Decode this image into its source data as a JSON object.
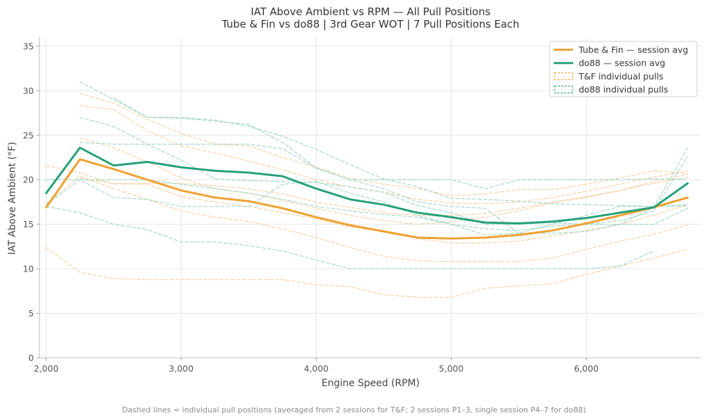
{
  "chart_data": {
    "type": "line",
    "title": "IAT Above Ambient vs RPM — All Pull Positions",
    "subtitle": "Tube & Fin vs do88 | 3rd Gear WOT | 7 Pull Positions Each",
    "xlabel": "Engine Speed (RPM)",
    "ylabel": "IAT Above Ambient (°F)",
    "xlim": [
      1950,
      6850
    ],
    "ylim": [
      0,
      36
    ],
    "xticks": [
      2000,
      3000,
      4000,
      5000,
      6000
    ],
    "xtick_labels": [
      "2,000",
      "3,000",
      "4,000",
      "5,000",
      "6,000"
    ],
    "yticks": [
      0,
      5,
      10,
      15,
      20,
      25,
      30,
      35
    ],
    "ytick_labels": [
      "0",
      "5",
      "10",
      "15",
      "20",
      "25",
      "30",
      "35"
    ],
    "grid": true,
    "legend_position": "top-right",
    "footnote": "Dashed lines = individual pull positions (averaged from 2 sessions for T&F; 2 sessions P1–3, single session P4–7 for do88)",
    "colors": {
      "tube_fin": "#f0a030",
      "do88": "#25a07a",
      "tube_fin_faint": "#f6cfa0",
      "do88_faint": "#9fd6c6"
    },
    "legend": [
      {
        "label": "Tube & Fin — session avg",
        "color": "#f0a030",
        "style": "solid"
      },
      {
        "label": "do88 — session avg",
        "color": "#25a07a",
        "style": "solid"
      },
      {
        "label": "T&F individual pulls",
        "color": "#f0a030",
        "style": "dashed-patch"
      },
      {
        "label": "do88 individual pulls",
        "color": "#25a07a",
        "style": "dashed-patch"
      }
    ],
    "series": [
      {
        "name": "Tube & Fin — session avg",
        "color": "#f0a030",
        "width": 3,
        "dashed": false,
        "x": [
          2000,
          2250,
          2500,
          2750,
          3000,
          3250,
          3500,
          3750,
          4000,
          4250,
          4500,
          4750,
          5000,
          5250,
          5500,
          5750,
          6000,
          6250,
          6500,
          6750
        ],
        "y": [
          16.9,
          22.3,
          21.2,
          20.0,
          18.8,
          18.0,
          17.6,
          16.8,
          15.8,
          14.9,
          14.2,
          13.5,
          13.4,
          13.5,
          13.8,
          14.3,
          15.1,
          16.0,
          16.9,
          18.0
        ]
      },
      {
        "name": "do88 — session avg",
        "color": "#25a07a",
        "width": 3,
        "dashed": false,
        "x": [
          2000,
          2250,
          2500,
          2750,
          3000,
          3250,
          3500,
          3750,
          4000,
          4250,
          4500,
          4750,
          5000,
          5250,
          5500,
          5750,
          6000,
          6250,
          6500,
          6750
        ],
        "y": [
          18.5,
          23.6,
          21.6,
          22.0,
          21.4,
          21.0,
          20.8,
          20.4,
          19.0,
          17.8,
          17.2,
          16.3,
          15.8,
          15.2,
          15.1,
          15.3,
          15.7,
          16.3,
          16.9,
          19.6
        ]
      },
      {
        "color": "#f6cfa0",
        "width": 1.3,
        "dashed": true,
        "x": [
          2250,
          2500,
          2750,
          3000,
          3250,
          3500,
          3750,
          4000,
          4250,
          4500,
          4750,
          5000,
          5250,
          5500,
          5750,
          6000,
          6250,
          6500,
          6750
        ],
        "y": [
          29.7,
          28.6,
          26.8,
          25.2,
          24.0,
          23.8,
          22.5,
          21.4,
          20.2,
          19.5,
          19.0,
          18.2,
          18.4,
          18.9,
          18.9,
          19.5,
          20.2,
          21.0,
          20.7
        ]
      },
      {
        "color": "#f6cfa0",
        "width": 1.3,
        "dashed": true,
        "x": [
          2250,
          2500,
          2750,
          3000,
          3250,
          3500,
          3750,
          4000,
          4250,
          4500,
          4750,
          5000,
          5250,
          5500,
          5750,
          6000,
          6250,
          6500,
          6750
        ],
        "y": [
          28.3,
          27.9,
          25.5,
          23.8,
          23.0,
          22.1,
          21.1,
          20.0,
          19.2,
          18.6,
          17.8,
          17.4,
          17.3,
          17.5,
          18.0,
          18.7,
          19.5,
          20.3,
          21.0
        ]
      },
      {
        "color": "#f6cfa0",
        "width": 1.3,
        "dashed": true,
        "x": [
          2250,
          2500,
          2750,
          3000,
          3250,
          3500,
          3750,
          4000,
          4250,
          4500,
          4750,
          5000,
          5250,
          5500,
          5750,
          6000,
          6250,
          6500,
          6750
        ],
        "y": [
          24.7,
          23.6,
          22.0,
          20.2,
          19.0,
          18.5,
          17.7,
          16.8,
          16.0,
          15.4,
          15.0,
          15.3,
          15.8,
          16.5,
          17.4,
          18.0,
          18.8,
          19.8,
          20.6
        ]
      },
      {
        "color": "#f6cfa0",
        "width": 1.3,
        "dashed": true,
        "x": [
          2000,
          2250,
          2500,
          2750,
          3000,
          3250,
          3500,
          3750,
          4000,
          4250,
          4500,
          4750,
          5000,
          5250,
          5500,
          5750,
          6000,
          6250,
          6500,
          6750
        ],
        "y": [
          21.6,
          20.8,
          19.5,
          19.6,
          19.6,
          19.3,
          19.0,
          18.4,
          17.5,
          16.9,
          16.3,
          16.0,
          16.0,
          16.2,
          16.8,
          17.5,
          18.1,
          18.8,
          19.6,
          20.3
        ]
      },
      {
        "color": "#f6cfa0",
        "width": 1.3,
        "dashed": true,
        "x": [
          2250,
          2500,
          2750,
          3000,
          3250,
          3500,
          3750,
          4000,
          4250,
          4500,
          4750,
          5000,
          5250,
          5500,
          5750,
          6000,
          6250,
          6500,
          6750
        ],
        "y": [
          20.2,
          19.6,
          19.5,
          18.1,
          17.5,
          17.0,
          16.3,
          15.6,
          14.7,
          14.2,
          13.4,
          12.9,
          12.9,
          13.1,
          13.7,
          14.3,
          15.0,
          16.0,
          17.2
        ]
      },
      {
        "color": "#f6cfa0",
        "width": 1.3,
        "dashed": true,
        "x": [
          2000,
          2250,
          2500,
          2750,
          3000,
          3250,
          3500,
          3750,
          4000,
          4250,
          4500,
          4750,
          5000,
          5250,
          5500,
          5750,
          6000,
          6250,
          6500,
          6750
        ],
        "y": [
          17.3,
          20.4,
          19.0,
          17.8,
          16.5,
          15.8,
          15.3,
          14.5,
          13.5,
          12.4,
          11.4,
          10.9,
          10.8,
          10.8,
          10.8,
          11.2,
          12.2,
          13.1,
          13.9,
          14.9
        ]
      },
      {
        "color": "#f6cfa0",
        "width": 1.3,
        "dashed": true,
        "x": [
          2000,
          2250,
          2500,
          2750,
          3000,
          3250,
          3500,
          3750,
          4000,
          4250,
          4500,
          4750,
          5000,
          5250,
          5500,
          5750,
          6000,
          6250,
          6500,
          6750
        ],
        "y": [
          12.4,
          9.6,
          8.9,
          8.8,
          8.8,
          8.8,
          8.8,
          8.8,
          8.2,
          8.0,
          7.1,
          6.8,
          6.8,
          7.8,
          8.1,
          8.3,
          9.4,
          10.3,
          11.2,
          12.2
        ]
      },
      {
        "color": "#9fd6c6",
        "width": 1.3,
        "dashed": true,
        "x": [
          2250,
          2500,
          2750,
          3000,
          3250,
          3500,
          3750,
          4000,
          4250,
          4500,
          4750,
          5000,
          5250,
          5500,
          5750,
          6000,
          6250,
          6500,
          6750
        ],
        "y": [
          31.0,
          29.0,
          27.0,
          27.0,
          26.7,
          26.0,
          24.9,
          23.4,
          21.7,
          20.1,
          19.2,
          17.9,
          17.8,
          17.6,
          17.3,
          17.2,
          17.1,
          17.0,
          17.1
        ]
      },
      {
        "color": "#9fd6c6",
        "width": 1.3,
        "dashed": true,
        "x": [
          2250,
          2500,
          2750,
          3000,
          3250,
          3500,
          3750,
          4000,
          4250,
          4500,
          4750,
          5000,
          5250,
          5500,
          5750,
          6000,
          6250,
          6500,
          6750
        ],
        "y": [
          27.0,
          26.0,
          24.0,
          22.2,
          20.1,
          19.9,
          19.8,
          19.7,
          19.2,
          18.6,
          17.1,
          16.3,
          15.0,
          15.0,
          15.2,
          15.0,
          15.4,
          16.5,
          22.6
        ]
      },
      {
        "color": "#9fd6c6",
        "width": 1.3,
        "dashed": true,
        "x": [
          2500,
          2750,
          3000,
          3250,
          3500,
          3750,
          4000,
          4250,
          4500,
          4750,
          5000,
          5250,
          5500,
          5750,
          6000,
          6250,
          6500,
          6750
        ],
        "y": [
          29.2,
          27.0,
          26.9,
          26.6,
          26.2,
          24.2,
          21.3,
          20.0,
          20.0,
          20.0,
          20.0,
          19.0,
          20.0,
          20.0,
          20.0,
          20.0,
          20.1,
          20.0
        ]
      },
      {
        "color": "#9fd6c6",
        "width": 1.3,
        "dashed": true,
        "x": [
          2250,
          2500,
          2750,
          3000,
          3250,
          3500,
          3750,
          4000,
          4250,
          4500,
          4750,
          5000,
          5250,
          5500,
          5750,
          6000,
          6250,
          6500,
          6750
        ],
        "y": [
          24.2,
          24.0,
          24.0,
          24.0,
          24.0,
          24.0,
          23.5,
          21.3,
          20.0,
          19.0,
          17.5,
          17.0,
          16.8,
          14.0,
          14.0,
          14.2,
          15.0,
          16.9,
          23.6
        ]
      },
      {
        "color": "#9fd6c6",
        "width": 1.3,
        "dashed": true,
        "x": [
          2000,
          2250,
          2500,
          2750,
          3000,
          3250,
          3500,
          3750,
          4000,
          4250,
          4500,
          4750,
          5000,
          5250,
          5500,
          5750,
          6000,
          6250,
          6500,
          6750
        ],
        "y": [
          20.0,
          20.0,
          20.0,
          20.0,
          19.5,
          19.0,
          18.5,
          17.8,
          17.0,
          16.5,
          16.1,
          15.8,
          15.0,
          14.5,
          14.3,
          14.8,
          15.0,
          15.0,
          15.0,
          16.8
        ]
      },
      {
        "color": "#9fd6c6",
        "width": 1.3,
        "dashed": true,
        "x": [
          2000,
          2250,
          2500,
          2750,
          3000,
          3250,
          3500,
          3750,
          4000,
          4250,
          4500,
          4750,
          5000,
          5250,
          5500,
          5750,
          6000,
          6250,
          6500,
          6750
        ],
        "y": [
          17.2,
          20.0,
          18.0,
          17.8,
          17.0,
          17.0,
          17.0,
          19.5,
          19.8,
          18.5,
          17.5,
          16.0,
          15.0,
          13.8,
          14.0,
          15.0,
          16.0,
          17.0,
          17.0,
          17.2
        ]
      },
      {
        "color": "#9fd6c6",
        "width": 1.3,
        "dashed": true,
        "x": [
          2000,
          2250,
          2500,
          2750,
          3000,
          3250,
          3500,
          3750,
          4000,
          4250,
          4500,
          4750,
          5000,
          5250,
          5500,
          5750,
          6000,
          6250,
          6500
        ],
        "y": [
          17.0,
          16.3,
          15.0,
          14.4,
          13.0,
          13.0,
          12.6,
          12.0,
          11.0,
          10.0,
          10.0,
          10.0,
          10.0,
          10.0,
          10.0,
          10.0,
          10.0,
          10.3,
          12.0
        ]
      }
    ]
  }
}
